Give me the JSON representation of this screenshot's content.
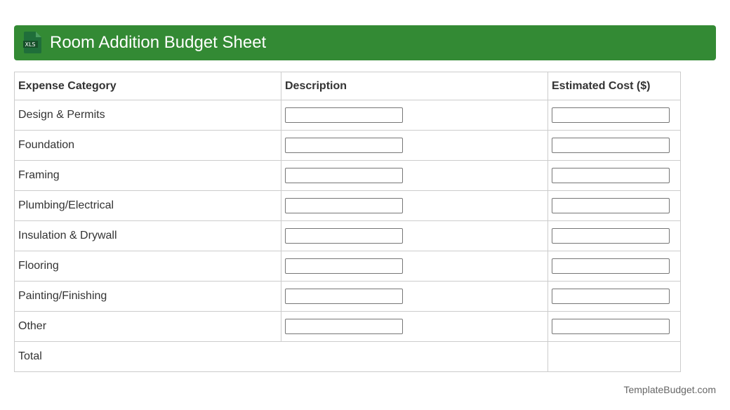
{
  "header": {
    "title": "Room Addition Budget Sheet",
    "icon": "xls-file-icon",
    "icon_text": "XLS",
    "color": "#338a34"
  },
  "table": {
    "columns": [
      "Expense Category",
      "Description",
      "Estimated Cost ($)"
    ],
    "rows": [
      "Design & Permits",
      "Foundation",
      "Framing",
      "Plumbing/Electrical",
      "Insulation & Drywall",
      "Flooring",
      "Painting/Finishing",
      "Other"
    ],
    "total_label": "Total"
  },
  "footer": {
    "brand": "TemplateBudget.com"
  }
}
